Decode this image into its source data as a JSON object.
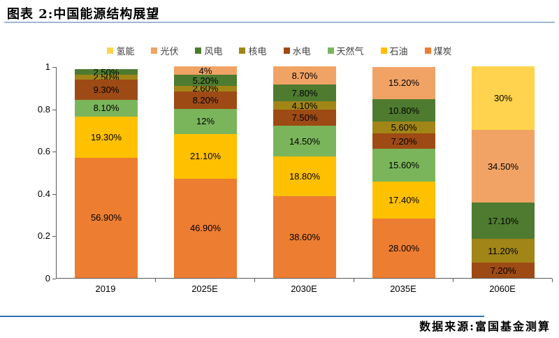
{
  "header": {
    "title": "图表 2:中国能源结构展望"
  },
  "footer": {
    "source": "数据来源:富国基金测算"
  },
  "colors": {
    "title_rule": "#9fb6d4",
    "source_rule": "#2e74b5",
    "axis": "#595959"
  },
  "chart_data": {
    "type": "bar",
    "stacked": true,
    "title": "中国能源结构展望",
    "categories": [
      "2019",
      "2025E",
      "2030E",
      "2035E",
      "2060E"
    ],
    "series": [
      {
        "name": "煤炭",
        "color": "#ED7D31",
        "values": [
          56.9,
          46.9,
          38.6,
          28.0,
          0
        ],
        "labels": [
          "56.90%",
          "46.90%",
          "38.60%",
          "28.00%",
          ""
        ]
      },
      {
        "name": "石油",
        "color": "#FFC000",
        "values": [
          19.3,
          21.1,
          18.8,
          17.4,
          0
        ],
        "labels": [
          "19.30%",
          "21.10%",
          "18.80%",
          "17.40%",
          ""
        ]
      },
      {
        "name": "天然气",
        "color": "#7AB55B",
        "values": [
          8.1,
          12.0,
          14.5,
          15.6,
          0
        ],
        "labels": [
          "8.10%",
          "12%",
          "14.50%",
          "15.60%",
          ""
        ]
      },
      {
        "name": "水电",
        "color": "#9E4A15",
        "values": [
          9.3,
          8.2,
          7.5,
          7.2,
          7.2
        ],
        "labels": [
          "9.30%",
          "8.20%",
          "7.50%",
          "7.20%",
          "7.20%"
        ]
      },
      {
        "name": "核电",
        "color": "#A18517",
        "values": [
          2.5,
          2.6,
          4.1,
          5.6,
          11.2
        ],
        "labels": [
          "2.50%",
          "2.60%",
          "4.10%",
          "5.60%",
          "11.20%"
        ]
      },
      {
        "name": "风电",
        "color": "#4E7B2F",
        "values": [
          2.5,
          5.2,
          7.8,
          10.8,
          17.1
        ],
        "labels": [
          "2.50%",
          "5.20%",
          "7.80%",
          "10.80%",
          "17.10%"
        ]
      },
      {
        "name": "光伏",
        "color": "#F1A366",
        "values": [
          0,
          4.0,
          8.7,
          15.2,
          34.5
        ],
        "labels": [
          "",
          "4%",
          "8.70%",
          "15.20%",
          "34.50%"
        ]
      },
      {
        "name": "氢能",
        "color": "#FFD34D",
        "values": [
          0,
          0,
          0,
          0,
          30.0
        ],
        "labels": [
          "",
          "",
          "",
          "",
          "30%"
        ]
      }
    ],
    "legend_order": [
      "氢能",
      "光伏",
      "风电",
      "核电",
      "水电",
      "天然气",
      "石油",
      "煤炭"
    ],
    "ylim": [
      0,
      1
    ],
    "yticks": [
      1,
      0.8,
      0.6,
      0.4,
      0.2,
      0
    ],
    "ytick_labels": [
      "1",
      "0.8",
      "0.6",
      "0.4",
      "0.2",
      "0"
    ],
    "grid": false,
    "legend_position": "top"
  }
}
